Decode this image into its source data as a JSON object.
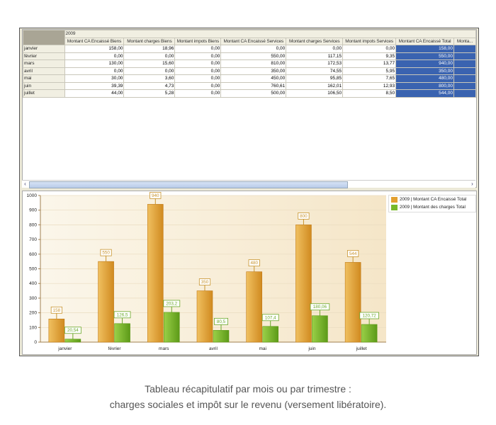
{
  "grid": {
    "year": "2009",
    "columns": [
      "Montant CA Encaissé Biens",
      "Montant charges Biens",
      "Montant impots Biens",
      "Montant CA Encaissé Services",
      "Montant charges Services",
      "Montant impots Services",
      "Montant CA Encaissé Total",
      "Monta..."
    ],
    "rows": [
      {
        "month": "janvier",
        "values": [
          "158,00",
          "18,96",
          "0,00",
          "0,00",
          "0,00",
          "0,00",
          "158,00",
          ""
        ]
      },
      {
        "month": "février",
        "values": [
          "0,00",
          "0,00",
          "0,00",
          "550,00",
          "117,15",
          "9,35",
          "550,00",
          ""
        ]
      },
      {
        "month": "mars",
        "values": [
          "130,00",
          "15,60",
          "0,00",
          "810,00",
          "172,53",
          "13,77",
          "940,00",
          ""
        ]
      },
      {
        "month": "avril",
        "values": [
          "0,00",
          "0,00",
          "0,00",
          "350,00",
          "74,55",
          "5,95",
          "350,00",
          ""
        ]
      },
      {
        "month": "mai",
        "values": [
          "30,00",
          "3,60",
          "0,00",
          "450,00",
          "95,85",
          "7,65",
          "480,00",
          ""
        ]
      },
      {
        "month": "juin",
        "values": [
          "39,39",
          "4,73",
          "0,00",
          "760,61",
          "162,01",
          "12,93",
          "800,00",
          ""
        ]
      },
      {
        "month": "juillet",
        "values": [
          "44,00",
          "5,28",
          "0,00",
          "500,00",
          "106,50",
          "8,50",
          "544,00",
          ""
        ]
      }
    ],
    "selection_color": "#3a63b0"
  },
  "chart_data": {
    "type": "bar",
    "categories": [
      "janvier",
      "février",
      "mars",
      "avril",
      "mai",
      "juin",
      "juillet"
    ],
    "series": [
      {
        "name": "2009 | Montant CA Encaissé Total",
        "values": [
          158,
          550,
          940,
          350,
          480,
          800,
          544
        ],
        "labels": [
          "158",
          "550",
          "940",
          "350",
          "480",
          "800",
          "544"
        ],
        "color": "#e3a030"
      },
      {
        "name": "2009 | Montant des charges Total",
        "values": [
          20.54,
          126.5,
          203.2,
          80.5,
          107.4,
          180.06,
          120.72
        ],
        "labels": [
          "20,54",
          "126,5",
          "203,2",
          "80,5",
          "107,4",
          "180,06",
          "120,72"
        ],
        "color": "#78b82a"
      }
    ],
    "ylim": [
      0,
      1000
    ],
    "yticks": [
      "0",
      "100",
      "200",
      "300",
      "400",
      "500",
      "600",
      "700",
      "800",
      "900",
      "1000"
    ],
    "grid": true,
    "legend": "top-right"
  },
  "caption": {
    "line1": "Tableau récapitulatif par mois ou par trimestre :",
    "line2": "charges sociales et impôt sur le revenu (versement libératoire)."
  }
}
